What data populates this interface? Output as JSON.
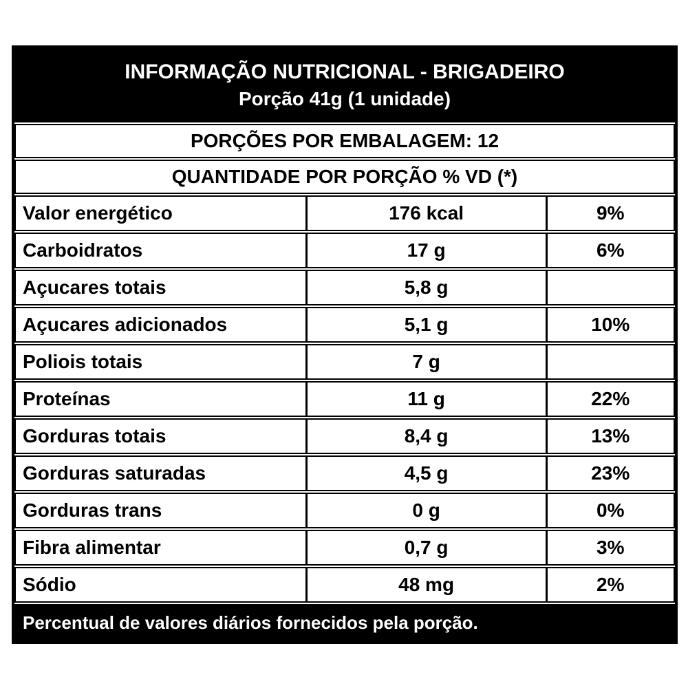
{
  "label": {
    "title": "INFORMAÇÃO NUTRICIONAL - BRIGADEIRO",
    "serving": "Porção 41g (1 unidade)",
    "servings_per_package": "PORÇÕES POR EMBALAGEM: 12",
    "column_header": "QUANTIDADE POR PORÇÃO % VD (*)",
    "rows": [
      {
        "label": "Valor energético",
        "amount": "176 kcal",
        "dv": "9%"
      },
      {
        "label": "Carboidratos",
        "amount": "17 g",
        "dv": "6%"
      },
      {
        "label": "Açucares totais",
        "amount": "5,8 g",
        "dv": ""
      },
      {
        "label": "Açucares adicionados",
        "amount": "5,1 g",
        "dv": "10%"
      },
      {
        "label": "Poliois totais",
        "amount": "7 g",
        "dv": ""
      },
      {
        "label": "Proteínas",
        "amount": "11 g",
        "dv": "22%"
      },
      {
        "label": "Gorduras totais",
        "amount": "8,4 g",
        "dv": "13%"
      },
      {
        "label": "Gorduras saturadas",
        "amount": "4,5 g",
        "dv": "23%"
      },
      {
        "label": "Gorduras trans",
        "amount": "0 g",
        "dv": "0%"
      },
      {
        "label": "Fibra alimentar",
        "amount": "0,7 g",
        "dv": "3%"
      },
      {
        "label": "Sódio",
        "amount": "48 mg",
        "dv": "2%"
      }
    ],
    "footnote": "Percentual de valores diários fornecidos pela porção.",
    "colors": {
      "background": "#ffffff",
      "header_bg": "#000000",
      "header_text": "#ffffff",
      "body_text": "#000000",
      "border": "#000000"
    }
  }
}
